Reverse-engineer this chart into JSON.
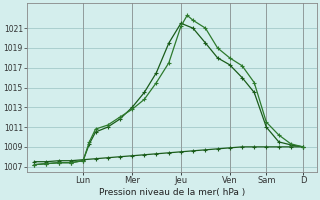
{
  "xlabel": "Pression niveau de la mer( hPa )",
  "background_color": "#d4eeed",
  "grid_color": "#aacfcf",
  "line_color_dark": "#1a5c1a",
  "line_color_mid": "#2d7a2d",
  "ylim": [
    1006.5,
    1023.5
  ],
  "yticks": [
    1007,
    1009,
    1011,
    1013,
    1015,
    1017,
    1019,
    1021
  ],
  "xlim": [
    -0.2,
    7.7
  ],
  "day_labels": [
    "Lun",
    "Mer",
    "Jeu",
    "Ven",
    "Sam",
    "D"
  ],
  "day_positions": [
    1.33,
    2.67,
    4.0,
    5.33,
    6.33,
    7.33
  ],
  "vline_positions": [
    1.33,
    2.67,
    4.0,
    5.33,
    6.33,
    7.33
  ],
  "series1_x": [
    0,
    0.33,
    0.67,
    1.0,
    1.33,
    1.5,
    1.67,
    2.0,
    2.33,
    2.67,
    3.0,
    3.33,
    3.67,
    4.0,
    4.17,
    4.33,
    4.67,
    5.0,
    5.33,
    5.67,
    6.0,
    6.33,
    6.67,
    7.0,
    7.33
  ],
  "series1_y": [
    1007.2,
    1007.3,
    1007.4,
    1007.4,
    1007.6,
    1009.5,
    1010.8,
    1011.2,
    1012.0,
    1012.8,
    1013.8,
    1015.5,
    1017.5,
    1021.2,
    1022.3,
    1021.8,
    1021.0,
    1019.0,
    1018.0,
    1017.2,
    1015.5,
    1011.5,
    1010.2,
    1009.3,
    1009.0
  ],
  "series2_x": [
    0,
    0.33,
    0.67,
    1.0,
    1.33,
    1.5,
    1.67,
    2.0,
    2.33,
    2.67,
    3.0,
    3.33,
    3.67,
    4.0,
    4.33,
    4.67,
    5.0,
    5.33,
    5.67,
    6.0,
    6.33,
    6.67,
    7.0,
    7.33
  ],
  "series2_y": [
    1007.2,
    1007.3,
    1007.4,
    1007.4,
    1007.6,
    1009.3,
    1010.5,
    1011.0,
    1011.8,
    1013.0,
    1014.5,
    1016.5,
    1019.5,
    1021.5,
    1021.0,
    1019.5,
    1018.0,
    1017.3,
    1016.0,
    1014.5,
    1011.0,
    1009.5,
    1009.2,
    1009.0
  ],
  "series3_x": [
    0,
    0.33,
    0.67,
    1.0,
    1.33,
    1.67,
    2.0,
    2.33,
    2.67,
    3.0,
    3.33,
    3.67,
    4.0,
    4.33,
    4.67,
    5.0,
    5.33,
    5.67,
    6.0,
    6.33,
    6.67,
    7.0,
    7.33
  ],
  "series3_y": [
    1007.5,
    1007.5,
    1007.6,
    1007.6,
    1007.7,
    1007.8,
    1007.9,
    1008.0,
    1008.1,
    1008.2,
    1008.3,
    1008.4,
    1008.5,
    1008.6,
    1008.7,
    1008.8,
    1008.9,
    1009.0,
    1009.0,
    1009.0,
    1009.0,
    1009.0,
    1009.0
  ]
}
